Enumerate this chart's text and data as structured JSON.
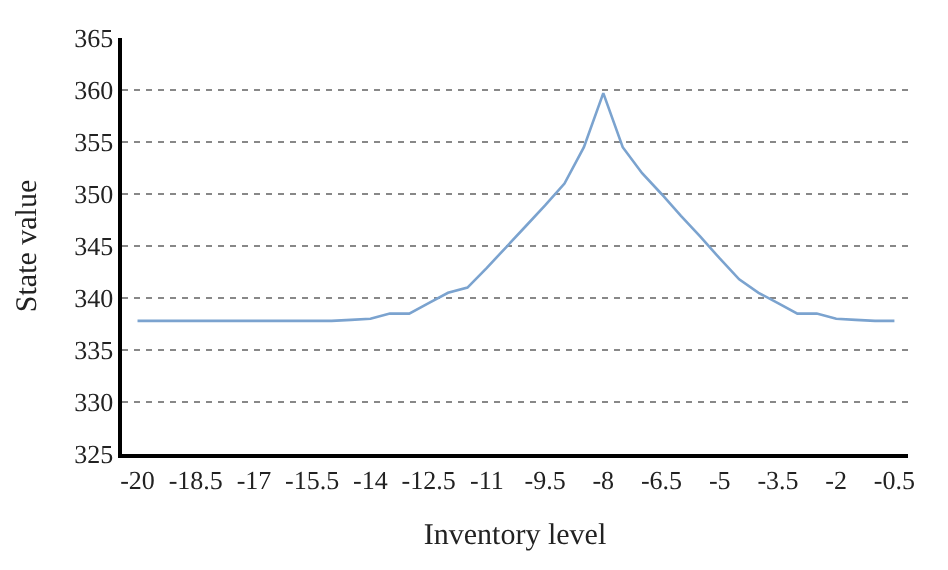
{
  "chart_data": {
    "type": "line",
    "xlabel": "Inventory level",
    "ylabel": "State value",
    "categories": [
      "-20",
      null,
      null,
      "-18.5",
      null,
      null,
      "-17",
      null,
      null,
      "-15.5",
      null,
      null,
      "-14",
      null,
      null,
      "-12.5",
      null,
      null,
      "-11",
      null,
      null,
      "-9.5",
      null,
      null,
      "-8",
      null,
      null,
      "-6.5",
      null,
      null,
      "-5",
      null,
      null,
      "-3.5",
      null,
      null,
      "-2",
      null,
      null,
      "-0.5"
    ],
    "series": [
      {
        "color": "#7ba3cf",
        "values": [
          337.8,
          337.8,
          337.8,
          337.8,
          337.8,
          337.8,
          337.8,
          337.8,
          337.8,
          337.8,
          337.8,
          337.9,
          338.0,
          338.5,
          338.5,
          339.5,
          340.5,
          341.0,
          342.9,
          344.9,
          346.9,
          348.9,
          351.0,
          354.5,
          359.7,
          354.5,
          352.0,
          350.0,
          347.9,
          345.9,
          343.8,
          341.8,
          340.5,
          339.5,
          338.5,
          338.5,
          338.0,
          337.9,
          337.8,
          337.8
        ]
      }
    ],
    "ylim": [
      325,
      365
    ],
    "yticks": [
      325,
      330,
      335,
      340,
      345,
      350,
      355,
      360,
      365
    ],
    "grid": "y",
    "legend": false,
    "marker": "none",
    "line_style": "solid"
  }
}
